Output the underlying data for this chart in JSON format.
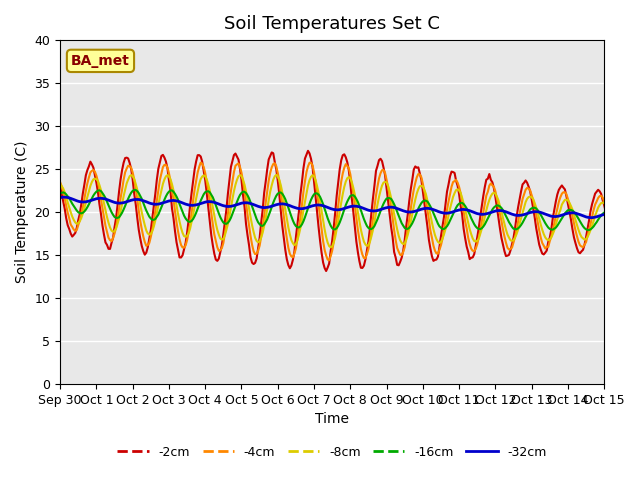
{
  "title": "Soil Temperatures Set C",
  "xlabel": "Time",
  "ylabel": "Soil Temperature (C)",
  "ylim": [
    0,
    40
  ],
  "annotation_text": "BA_met",
  "xtick_labels": [
    "Sep 30",
    "Oct 1",
    "Oct 2",
    "Oct 3",
    "Oct 4",
    "Oct 5",
    "Oct 6",
    "Oct 7",
    "Oct 8",
    "Oct 9",
    "Oct 10",
    "Oct 11",
    "Oct 12",
    "Oct 13",
    "Oct 14",
    "Oct 15"
  ],
  "line_colors": [
    "#cc0000",
    "#ff8800",
    "#ddcc00",
    "#00aa00",
    "#0000cc"
  ],
  "line_labels": [
    "-2cm",
    "-4cm",
    "-8cm",
    "-16cm",
    "-32cm"
  ],
  "line_widths": [
    1.5,
    1.5,
    1.5,
    1.5,
    2.0
  ],
  "bg_color": "#e8e8e8",
  "fig_bg_color": "#ffffff",
  "annotation_bg": "#ffff99",
  "annotation_border": "#aa8800",
  "annotation_text_color": "#880000",
  "title_fontsize": 13,
  "label_fontsize": 10,
  "tick_fontsize": 9,
  "legend_fontsize": 9,
  "yticks": [
    0,
    5,
    10,
    15,
    20,
    25,
    30,
    35,
    40
  ]
}
